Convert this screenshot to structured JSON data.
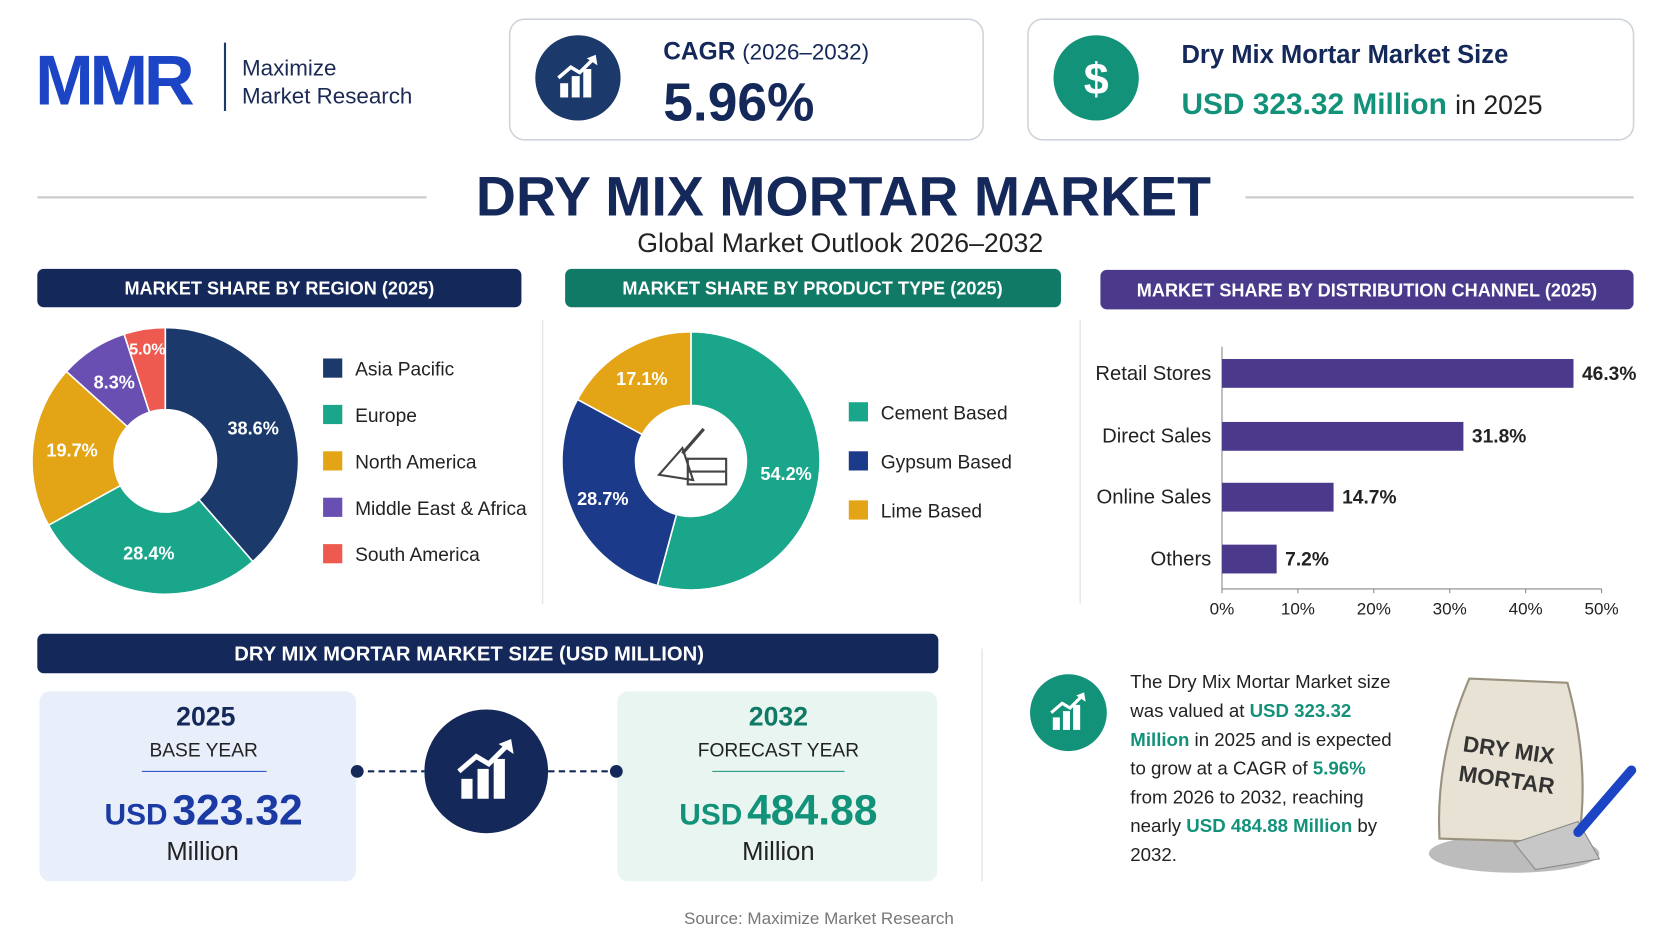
{
  "header": {
    "logo": "MMR",
    "brand_line1": "Maximize",
    "brand_line2": "Market Research"
  },
  "kpis": [
    {
      "label": "CAGR",
      "period": "(2026–2032)",
      "value": "5.96%"
    },
    {
      "icon": "$",
      "label": "Dry Mix Mortar Market Size",
      "value": "USD 323.32 Million",
      "suffix": "in 2025"
    }
  ],
  "title": "DRY MIX MORTAR MARKET",
  "subtitle": "Global Market Outlook 2026–2032",
  "chart_data": [
    {
      "type": "pie",
      "title": "MARKET SHARE BY REGION (2025)",
      "categories": [
        "Asia Pacific",
        "Europe",
        "North America",
        "Middle East & Africa",
        "South America"
      ],
      "values": [
        38.6,
        28.4,
        19.7,
        8.3,
        5.0
      ],
      "value_labels": [
        "38.6%",
        "28.4%",
        "19.7%",
        "8.3%",
        "5.0%"
      ],
      "colors": [
        "#1b3a6b",
        "#1aa68a",
        "#e3a416",
        "#6a4fb3",
        "#ee5a4f"
      ]
    },
    {
      "type": "pie",
      "title": "MARKET SHARE BY PRODUCT TYPE (2025)",
      "categories": [
        "Cement Based",
        "Gypsum Based",
        "Lime Based"
      ],
      "values": [
        54.2,
        28.7,
        17.1
      ],
      "value_labels": [
        "54.2%",
        "28.7%",
        "17.1%"
      ],
      "colors": [
        "#1aa68a",
        "#1b3a8a",
        "#e3a416"
      ]
    },
    {
      "type": "bar",
      "orientation": "horizontal",
      "title": "MARKET SHARE BY DISTRIBUTION CHANNEL (2025)",
      "categories": [
        "Retail Stores",
        "Direct Sales",
        "Online Sales",
        "Others"
      ],
      "values": [
        46.3,
        31.8,
        14.7,
        7.2
      ],
      "value_labels": [
        "46.3%",
        "31.8%",
        "14.7%",
        "7.2%"
      ],
      "color": "#4b3a8c",
      "xlim": [
        0,
        50
      ],
      "xticks": [
        {
          "value": 0,
          "label": "0%"
        },
        {
          "value": 10,
          "label": "10%"
        },
        {
          "value": 20,
          "label": "20%"
        },
        {
          "value": 30,
          "label": "30%"
        },
        {
          "value": 40,
          "label": "40%"
        },
        {
          "value": 50,
          "label": "50%"
        }
      ]
    }
  ],
  "market_size": {
    "title": "DRY MIX MORTAR MARKET SIZE (USD MILLION)",
    "base": {
      "year": "2025",
      "label": "BASE YEAR",
      "currency": "USD",
      "amount": "323.32",
      "unit": "Million"
    },
    "forecast": {
      "year": "2032",
      "label": "FORECAST YEAR",
      "currency": "USD",
      "amount": "484.88",
      "unit": "Million"
    }
  },
  "summary": {
    "parts": [
      "The Dry Mix Mortar Market size was valued at ",
      "USD 323.32 Million",
      " in 2025 and is expected to grow at a CAGR of ",
      "5.96%",
      " from 2026 to 2032, reaching nearly ",
      "USD 484.88 Million",
      " by 2032."
    ]
  },
  "bag": {
    "line1": "DRY MIX",
    "line2": "MORTAR"
  },
  "source": "Source: Maximize Market Research"
}
